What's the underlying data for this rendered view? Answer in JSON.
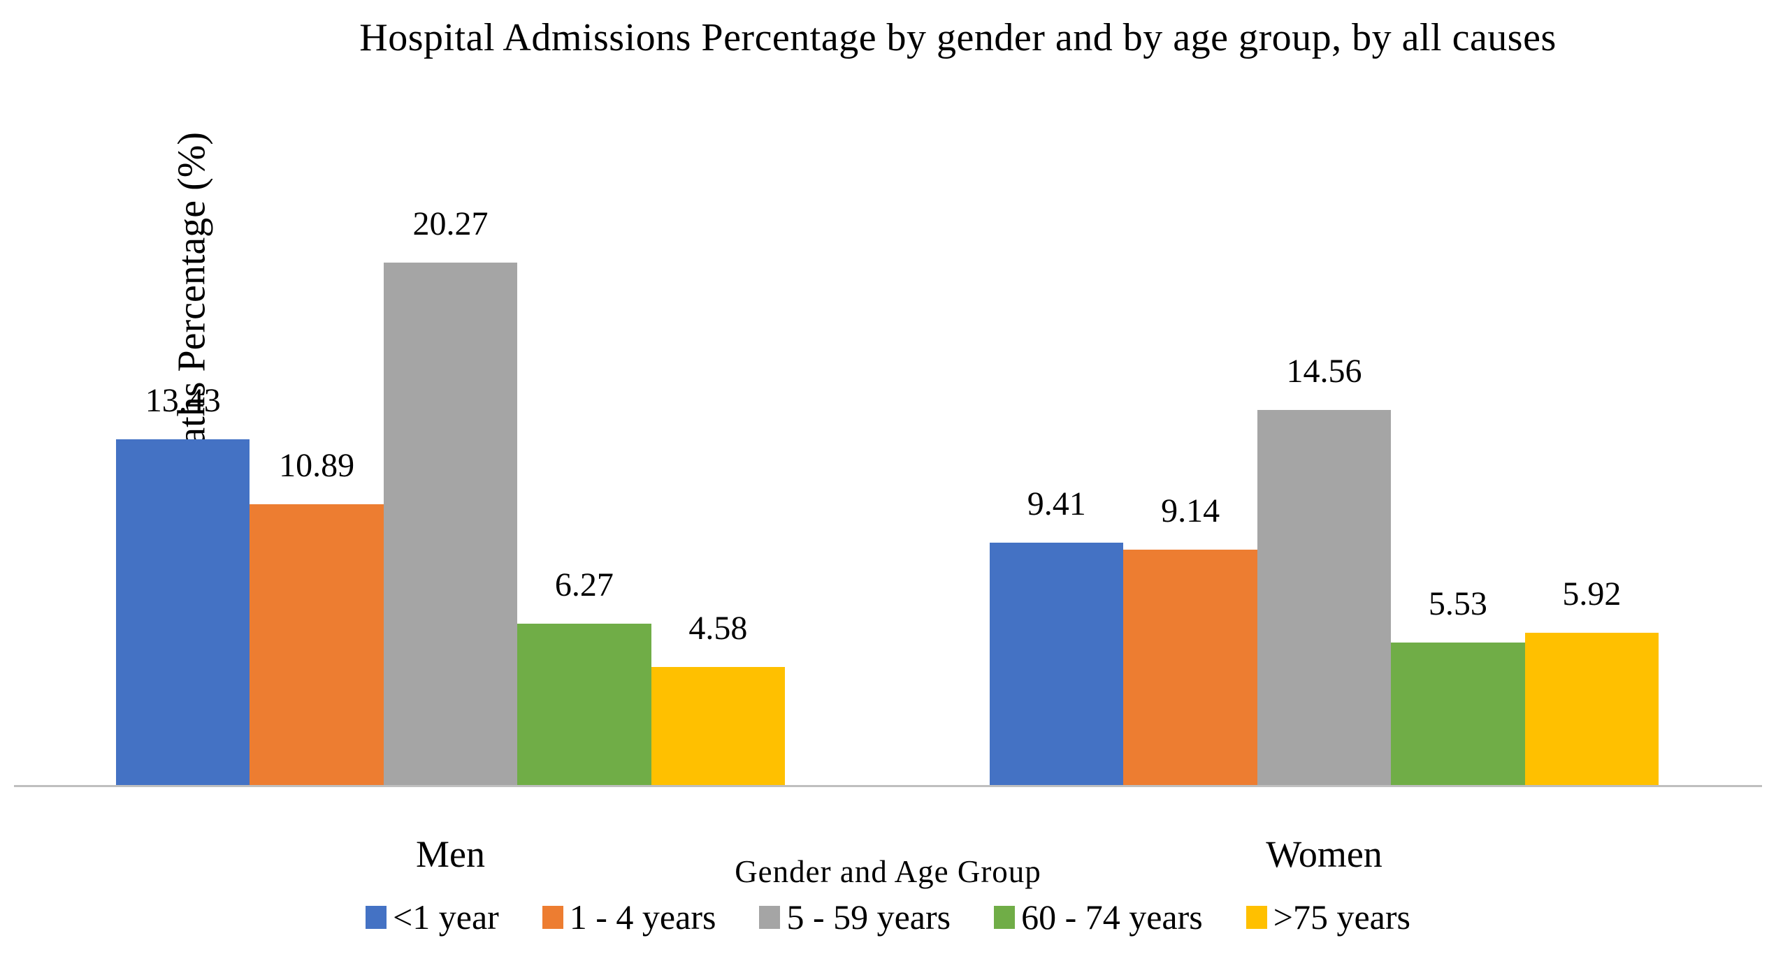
{
  "chart_data": {
    "type": "bar",
    "title": "Hospital Admissions Percentage by gender and by age group, by all causes",
    "xlabel": "Gender and Age Group",
    "ylabel": "Deaths Percentage (%)",
    "categories": [
      "Men",
      "Women"
    ],
    "series": [
      {
        "name": "<1 year",
        "color": "#4472C4",
        "values": [
          13.43,
          9.41
        ]
      },
      {
        "name": "1 - 4 years",
        "color": "#ED7D31",
        "values": [
          10.89,
          9.14
        ]
      },
      {
        "name": "5 - 59 years",
        "color": "#A5A5A5",
        "values": [
          20.27,
          14.56
        ]
      },
      {
        "name": "60 - 74 years",
        "color": "#70AD47",
        "values": [
          6.27,
          5.53
        ]
      },
      {
        "name": ">75 years",
        "color": "#FFC000",
        "values": [
          4.58,
          5.92
        ]
      }
    ],
    "value_labels": {
      "Men": [
        "13.43",
        "10.89",
        "20.27",
        "6.27",
        "4.58"
      ],
      "Women": [
        "9.41",
        "9.14",
        "14.56",
        "5.53",
        "5.92"
      ]
    },
    "ylim": [
      0,
      21.5
    ],
    "grid": false,
    "legend_position": "bottom",
    "axis_line_color": "#BFBFBF",
    "background_color": "#FFFFFF"
  }
}
